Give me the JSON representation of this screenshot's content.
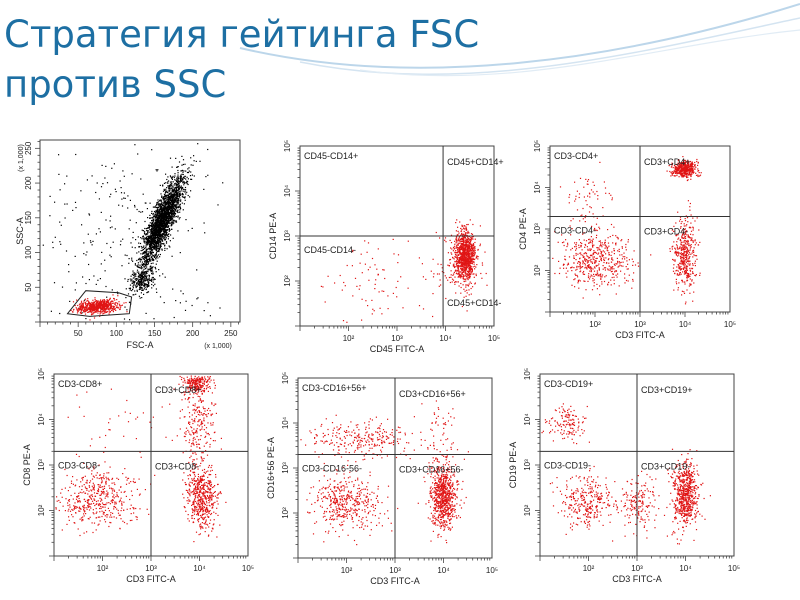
{
  "slide": {
    "title_line1": "Стратегия гейтинга FSC",
    "title_line2": "против SSC"
  },
  "colors": {
    "title": "#1d6fa3",
    "events_main": "#000000",
    "events_gated": "#e01515",
    "swoosh": "#bcd6ea"
  },
  "chart_data": [
    {
      "type": "scatter",
      "xlabel": "FSC-A",
      "ylabel": "SSC-A",
      "x_multiplier": "(x 1,000)",
      "y_multiplier": "(x 1,000)",
      "xlim": [
        0,
        262
      ],
      "ylim": [
        0,
        262
      ],
      "xticks": [
        50,
        100,
        150,
        200,
        250
      ],
      "yticks": [
        50,
        100,
        150,
        200,
        250
      ],
      "populations": [
        {
          "color": "black",
          "center": [
            160,
            145
          ],
          "spread": [
            14,
            32
          ],
          "count": 2400,
          "correlation": 0.85
        },
        {
          "color": "black",
          "center": [
            135,
            60
          ],
          "spread": [
            8,
            9
          ],
          "count": 250,
          "correlation": 0.2
        },
        {
          "color": "black",
          "center": [
            110,
            120
          ],
          "spread": [
            70,
            70
          ],
          "count": 280,
          "correlation": 0
        },
        {
          "color": "red",
          "center": [
            75,
            22
          ],
          "spread": [
            13,
            5
          ],
          "count": 650,
          "correlation": 0.3
        }
      ],
      "gate": [
        [
          36,
          12
        ],
        [
          60,
          45
        ],
        [
          103,
          42
        ],
        [
          120,
          36
        ],
        [
          117,
          12
        ],
        [
          65,
          8
        ]
      ]
    },
    {
      "type": "scatter",
      "scale": "log",
      "xlabel": "CD45 FITC-A",
      "ylabel": "CD14 PE-A",
      "xlim": [
        1,
        5
      ],
      "ylim": [
        1,
        5
      ],
      "tick_labels": [
        "10²",
        "10³",
        "10⁴",
        "10⁵"
      ],
      "quadrant_divider": [
        3.95,
        3.0
      ],
      "quadrants": {
        "tl": "CD45-CD14+",
        "tr": "CD45+CD14+",
        "bl": "CD45-CD14-",
        "br": "CD45+CD14-"
      },
      "populations": [
        {
          "center": [
            4.4,
            2.55
          ],
          "spread": [
            0.1,
            0.28
          ],
          "count": 900
        },
        {
          "center": [
            4.3,
            2.35
          ],
          "spread": [
            0.25,
            0.35
          ],
          "count": 180
        },
        {
          "center": [
            2.6,
            2.0
          ],
          "spread": [
            0.55,
            0.5
          ],
          "count": 80
        }
      ]
    },
    {
      "type": "scatter",
      "scale": "log",
      "xlabel": "CD3 FITC-A",
      "ylabel": "CD4 PE-A",
      "xlim": [
        1,
        5
      ],
      "ylim": [
        1,
        5
      ],
      "tick_labels": [
        "10²",
        "10³",
        "10⁴",
        "10⁵"
      ],
      "quadrant_divider": [
        3.0,
        3.3
      ],
      "quadrants": {
        "tl": "CD3-CD4+",
        "tr": "CD3+CD4+",
        "bl": "CD3-CD4-",
        "br": "CD3+CD4-"
      },
      "populations": [
        {
          "center": [
            4.0,
            4.45
          ],
          "spread": [
            0.14,
            0.1
          ],
          "count": 450
        },
        {
          "center": [
            4.0,
            2.4
          ],
          "spread": [
            0.12,
            0.42
          ],
          "count": 420
        },
        {
          "center": [
            2.05,
            2.25
          ],
          "spread": [
            0.4,
            0.35
          ],
          "count": 480
        },
        {
          "center": [
            1.9,
            3.8
          ],
          "spread": [
            0.25,
            0.35
          ],
          "count": 60
        }
      ]
    },
    {
      "type": "scatter",
      "scale": "log",
      "xlabel": "CD3 FITC-A",
      "ylabel": "CD8 PE-A",
      "xlim": [
        1,
        5
      ],
      "ylim": [
        1,
        5
      ],
      "tick_labels": [
        "10²",
        "10³",
        "10⁴",
        "10⁵"
      ],
      "quadrant_divider": [
        3.0,
        3.3
      ],
      "quadrants": {
        "tl": "CD3-CD8+",
        "tr": "CD3+CD8+",
        "bl": "CD3-CD8-",
        "br": "CD3+CD8-"
      },
      "populations": [
        {
          "center": [
            3.95,
            4.8
          ],
          "spread": [
            0.15,
            0.12
          ],
          "count": 260
        },
        {
          "center": [
            3.95,
            3.9
          ],
          "spread": [
            0.18,
            0.45
          ],
          "count": 220
        },
        {
          "center": [
            4.05,
            2.3
          ],
          "spread": [
            0.15,
            0.35
          ],
          "count": 520
        },
        {
          "center": [
            1.9,
            2.25
          ],
          "spread": [
            0.38,
            0.33
          ],
          "count": 450
        },
        {
          "center": [
            2.3,
            3.7
          ],
          "spread": [
            0.6,
            0.5
          ],
          "count": 40
        }
      ]
    },
    {
      "type": "scatter",
      "scale": "log",
      "xlabel": "CD3 FITC-A",
      "ylabel": "CD16+56 PE-A",
      "xlim": [
        1,
        5
      ],
      "ylim": [
        1,
        5
      ],
      "tick_labels": [
        "10²",
        "10³",
        "10⁴",
        "10⁵"
      ],
      "quadrant_divider": [
        3.0,
        3.3
      ],
      "quadrants": {
        "tl": "CD3-CD16+56+",
        "tr": "CD3+CD16+56+",
        "bl": "CD3-CD16-56-",
        "br": "CD3+CD16+56-"
      },
      "populations": [
        {
          "center": [
            4.0,
            2.35
          ],
          "spread": [
            0.13,
            0.33
          ],
          "count": 700
        },
        {
          "center": [
            2.0,
            2.2
          ],
          "spread": [
            0.35,
            0.3
          ],
          "count": 420
        },
        {
          "center": [
            2.2,
            3.65
          ],
          "spread": [
            0.55,
            0.2
          ],
          "count": 260
        },
        {
          "center": [
            3.9,
            3.4
          ],
          "spread": [
            0.2,
            0.5
          ],
          "count": 100
        }
      ]
    },
    {
      "type": "scatter",
      "scale": "log",
      "xlabel": "CD3 FITC-A",
      "ylabel": "CD19 PE-A",
      "xlim": [
        1,
        5
      ],
      "ylim": [
        1,
        5
      ],
      "tick_labels": [
        "10²",
        "10³",
        "10⁴",
        "10⁵"
      ],
      "quadrant_divider": [
        3.0,
        3.3
      ],
      "quadrants": {
        "tl": "CD3-CD19+",
        "tr": "CD3+CD19+",
        "bl": "CD3-CD19-",
        "br": "CD3+CD19-"
      },
      "populations": [
        {
          "center": [
            4.0,
            2.35
          ],
          "spread": [
            0.13,
            0.35
          ],
          "count": 650
        },
        {
          "center": [
            2.0,
            2.2
          ],
          "spread": [
            0.3,
            0.28
          ],
          "count": 300
        },
        {
          "center": [
            3.05,
            2.2
          ],
          "spread": [
            0.18,
            0.28
          ],
          "count": 160
        },
        {
          "center": [
            1.55,
            3.9
          ],
          "spread": [
            0.22,
            0.2
          ],
          "count": 130
        }
      ]
    }
  ]
}
